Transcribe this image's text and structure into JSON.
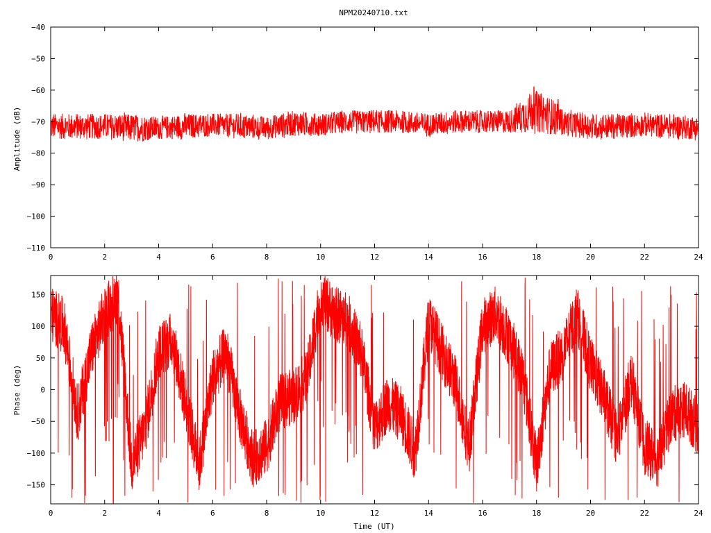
{
  "title": "NPM20240710.txt",
  "chart_data": [
    {
      "type": "line",
      "id": "amplitude",
      "xlabel": "",
      "ylabel": "Amplitude (dB)",
      "xlim": [
        0,
        24
      ],
      "ylim": [
        -110,
        -40
      ],
      "xticks": [
        0,
        2,
        4,
        6,
        8,
        10,
        12,
        14,
        16,
        18,
        20,
        22,
        24
      ],
      "yticks": [
        -40,
        -50,
        -60,
        -70,
        -80,
        -90,
        -100,
        -110
      ],
      "ytick_labels": [
        "−40",
        "−50",
        "−60",
        "−70",
        "−80",
        "−90",
        "−100",
        "−110"
      ],
      "grid": false,
      "color": "#ff0000",
      "series_envelope": {
        "x": [
          0,
          1,
          2,
          3,
          4,
          5,
          6,
          7,
          8,
          9,
          10,
          11,
          12,
          13,
          14,
          15,
          16,
          17,
          17.9,
          18.8,
          19,
          20,
          21,
          22,
          23,
          24
        ],
        "y_max": [
          -67,
          -67,
          -67,
          -67,
          -68,
          -67,
          -67,
          -67,
          -68,
          -66,
          -67,
          -66,
          -66,
          -66,
          -67,
          -66,
          -66,
          -66,
          -59,
          -63,
          -66,
          -67,
          -67,
          -67,
          -67,
          -68
        ],
        "y_min": [
          -76,
          -76,
          -76,
          -77,
          -76,
          -76,
          -75,
          -76,
          -76,
          -75,
          -75,
          -74,
          -74,
          -74,
          -75,
          -74,
          -74,
          -74,
          -74,
          -75,
          -75,
          -76,
          -76,
          -75,
          -76,
          -76
        ]
      }
    },
    {
      "type": "line",
      "id": "phase",
      "xlabel": "Time (UT)",
      "ylabel": "Phase (deg)",
      "xlim": [
        0,
        24
      ],
      "ylim": [
        -180,
        180
      ],
      "xticks": [
        0,
        2,
        4,
        6,
        8,
        10,
        12,
        14,
        16,
        18,
        20,
        22,
        24
      ],
      "yticks": [
        150,
        100,
        50,
        0,
        -50,
        -100,
        -150
      ],
      "ytick_labels": [
        "150",
        "100",
        "50",
        "0",
        "−50",
        "−100",
        "−150"
      ],
      "grid": false,
      "color": "#ff0000",
      "series_trend": {
        "x": [
          0,
          0.5,
          1,
          1.5,
          2,
          2.5,
          3,
          3.5,
          4,
          4.5,
          5,
          5.5,
          6,
          6.5,
          7,
          7.5,
          8,
          8.5,
          9,
          9.5,
          10,
          10.5,
          11,
          11.5,
          12,
          12.5,
          13,
          13.5,
          14,
          14.5,
          15,
          15.5,
          16,
          16.5,
          17,
          17.5,
          18,
          18.5,
          19,
          19.5,
          20,
          20.5,
          21,
          21.5,
          22,
          22.5,
          23,
          23.5,
          24
        ],
        "y": [
          120,
          100,
          -40,
          60,
          120,
          150,
          -120,
          -60,
          60,
          80,
          -20,
          -120,
          20,
          60,
          -40,
          -110,
          -90,
          -20,
          -10,
          20,
          150,
          120,
          110,
          60,
          -60,
          -20,
          -40,
          -100,
          110,
          60,
          10,
          -90,
          100,
          120,
          80,
          20,
          -120,
          30,
          60,
          120,
          40,
          -10,
          -80,
          20,
          -90,
          -110,
          -40,
          -30,
          -60
        ]
      }
    }
  ]
}
